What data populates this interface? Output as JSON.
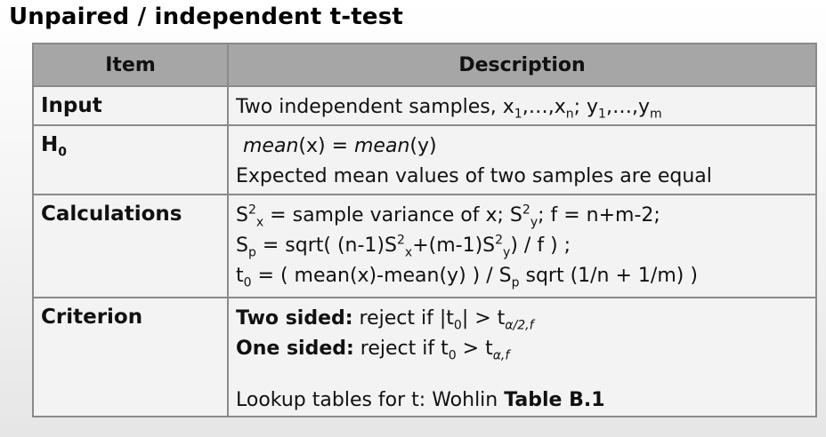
{
  "title": "Unpaired / independent t-test",
  "table": {
    "headers": {
      "item": "Item",
      "description": "Description"
    },
    "rows": {
      "input": {
        "label": "Input",
        "text": "Two independent samples, ",
        "x1": "x",
        "x1_sub": "1",
        "x1_rest": ",…,x",
        "xn_sub": "n",
        "sep": "; y",
        "y1_sub": "1",
        "y1_rest": ",…,y",
        "ym_sub": "m"
      },
      "h0": {
        "label": "H",
        "label_sub": "0",
        "eq_mean1": "mean",
        "eq_arg1": "(x)  = ",
        "eq_mean2": "mean",
        "eq_arg2": "(y)",
        "explanation": "Expected mean values of two samples are equal"
      },
      "calculations": {
        "label": "Calculations",
        "l1_a": "S",
        "l1_a_sup": "2",
        "l1_a_sub": "x",
        "l1_b": " = sample variance of x; S",
        "l1_b_sup": "2",
        "l1_b_sub": "y",
        "l1_c": "; f = n+m-2;",
        "l2_a": "S",
        "l2_a_sub": "p",
        "l2_b": " = sqrt( (n-1)S",
        "l2_b_sup": "2",
        "l2_b_sub": "x",
        "l2_c": "+(m-1)S",
        "l2_c_sup": "2",
        "l2_c_sub": "y",
        "l2_d": ") / f ) ;",
        "l3_a": "t",
        "l3_a_sub": "0",
        "l3_b": " = ( mean(x)-mean(y)  ) / S",
        "l3_b_sub": "p",
        "l3_c": " sqrt (1/n + 1/m) )"
      },
      "criterion": {
        "label": "Criterion",
        "two_label": "Two sided:",
        "two_text": " reject if |t",
        "two_sub0": "0",
        "two_text2": "| > t",
        "two_sub": "α/2,f",
        "one_label": "One sided:",
        "one_text": " reject if t",
        "one_sub0": "0",
        "one_text2": " > t",
        "one_sub": "α,f",
        "lookup_text": "Lookup tables for t: Wohlin ",
        "lookup_ref": "Table B.1"
      }
    }
  }
}
